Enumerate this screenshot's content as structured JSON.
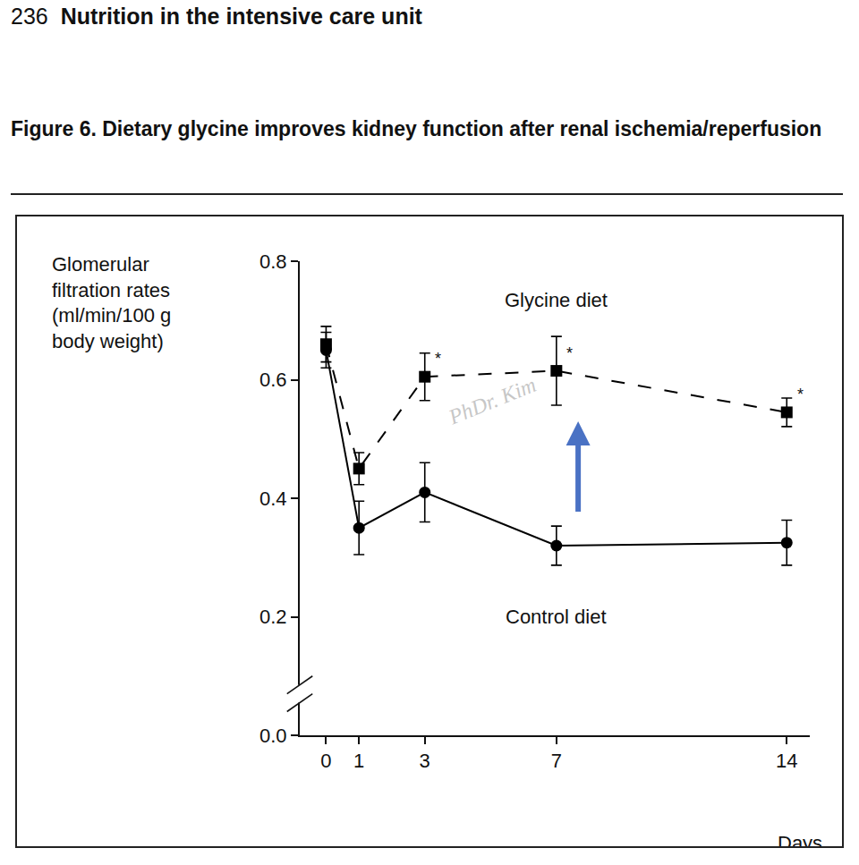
{
  "header": {
    "page_number": "236",
    "running_title": "Nutrition in the intensive care unit"
  },
  "figure_title": "Figure 6. Dietary glycine improves kidney function after renal ischemia/reperfusion",
  "watermark": "PhDr. Kim",
  "chart_data": {
    "type": "line",
    "y_label": [
      "Glomerular",
      "filtration rates",
      "(ml/min/100 g",
      "body weight)"
    ],
    "x_label": "Days",
    "x": [
      0,
      1,
      3,
      7,
      14
    ],
    "series": [
      {
        "name": "Glycine diet",
        "color": "#000000",
        "line_style": "dash",
        "marker": "square",
        "values": [
          0.66,
          0.45,
          0.605,
          0.615,
          0.545
        ],
        "error": [
          0.03,
          0.027,
          0.04,
          0.058,
          0.024
        ]
      },
      {
        "name": "Control diet",
        "color": "#000000",
        "line_style": "solid",
        "marker": "circle",
        "values": [
          0.65,
          0.35,
          0.41,
          0.32,
          0.325
        ],
        "error": [
          0.03,
          0.045,
          0.05,
          0.033,
          0.038
        ]
      }
    ],
    "annotations": [
      {
        "text": "*",
        "series": "Glycine diet",
        "x": 3
      },
      {
        "text": "*",
        "series": "Glycine diet",
        "x": 7
      },
      {
        "text": "*",
        "series": "Glycine diet",
        "x": 14
      }
    ],
    "xlim": [
      -0.8,
      14.7
    ],
    "xticks": [
      0,
      1,
      3,
      7,
      14
    ],
    "ylim": [
      0,
      0.8
    ],
    "yticks": [
      {
        "value": 0,
        "label": "0.0"
      },
      0.2,
      0.4,
      0.6,
      0.8
    ],
    "grid": false
  }
}
